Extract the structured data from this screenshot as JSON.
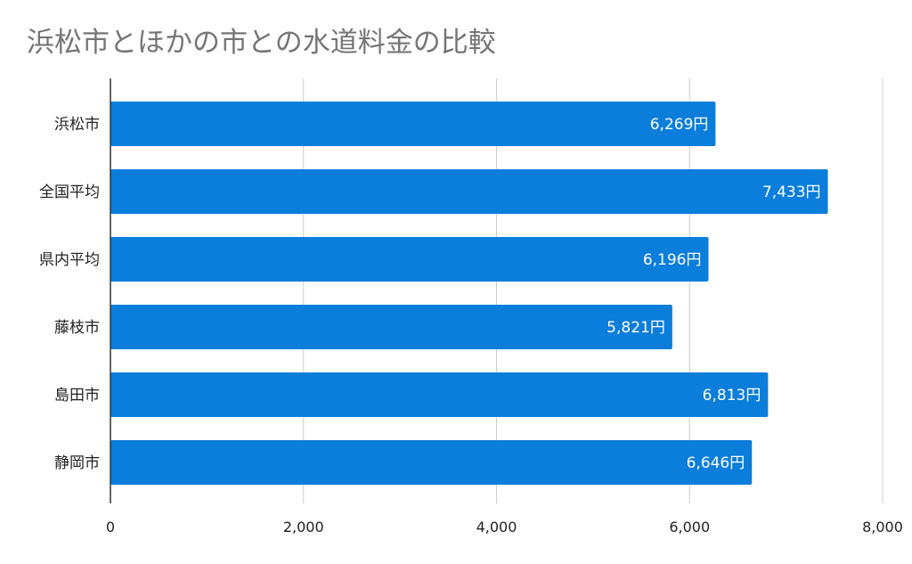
{
  "chart_data": {
    "type": "bar",
    "orientation": "horizontal",
    "title": "浜松市とほかの市との水道料金の比較",
    "categories": [
      "浜松市",
      "全国平均",
      "県内平均",
      "藤枝市",
      "島田市",
      "静岡市"
    ],
    "values": [
      6269,
      7433,
      6196,
      5821,
      6813,
      6646
    ],
    "data_labels": [
      "6,269円",
      "7,433円",
      "6,196円",
      "5,821円",
      "6,813円",
      "6,646円"
    ],
    "xlim": [
      0,
      8000
    ],
    "x_ticks": [
      0,
      2000,
      4000,
      6000,
      8000
    ],
    "x_tick_labels": [
      "0",
      "2,000",
      "4,000",
      "6,000",
      "8,000"
    ],
    "grid": true,
    "legend": "none",
    "colors": {
      "bar": "#0b7dda",
      "title": "#757575"
    }
  }
}
